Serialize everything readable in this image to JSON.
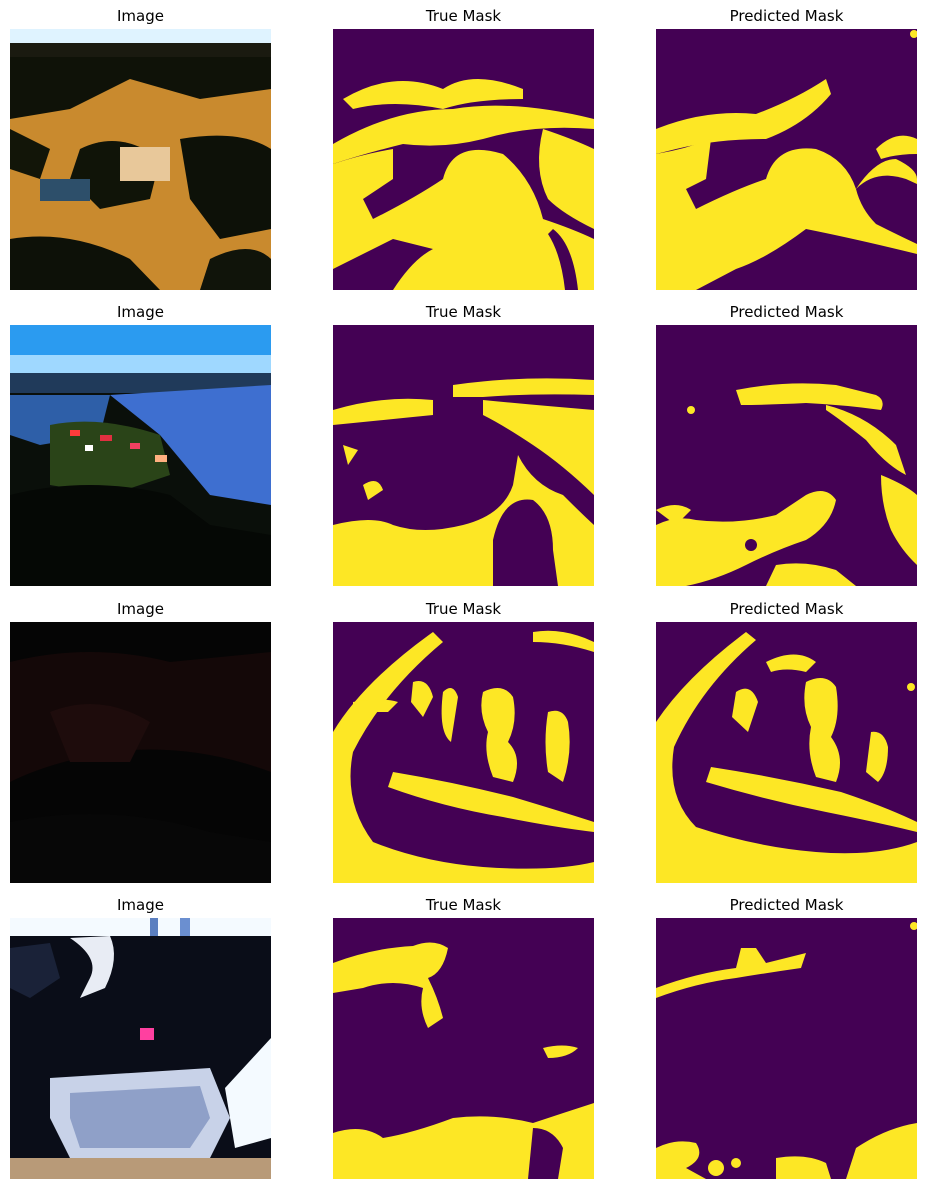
{
  "colors": {
    "mask_background": "#440154",
    "mask_foreground": "#fde725",
    "mask_edge": "#21918c"
  },
  "rows": [
    {
      "image_title": "Image",
      "true_title": "True Mask",
      "pred_title": "Predicted Mask"
    },
    {
      "image_title": "Image",
      "true_title": "True Mask",
      "pred_title": "Predicted Mask"
    },
    {
      "image_title": "Image",
      "true_title": "True Mask",
      "pred_title": "Predicted Mask"
    },
    {
      "image_title": "Image",
      "true_title": "True Mask",
      "pred_title": "Predicted Mask"
    }
  ]
}
